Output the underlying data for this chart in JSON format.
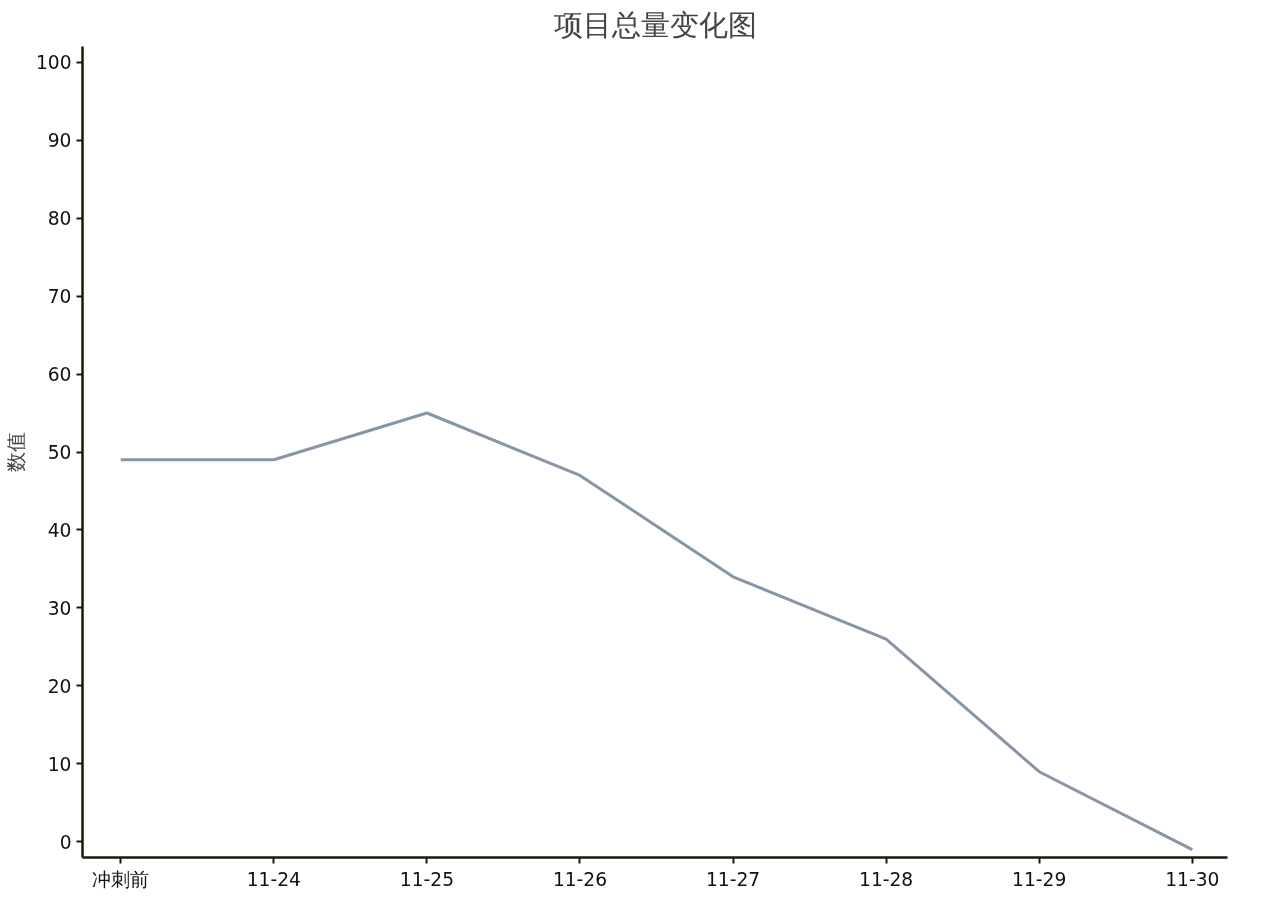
{
  "chart_data": {
    "type": "line",
    "title": "项目总量变化图",
    "ylabel": "数值",
    "categories": [
      "冲刺前",
      "11-24",
      "11-25",
      "11-26",
      "11-27",
      "11-28",
      "11-29",
      "11-30"
    ],
    "series": [
      {
        "color": "#8795a8",
        "values": [
          49,
          49,
          55,
          47,
          34,
          26,
          9,
          -1
        ]
      }
    ],
    "ylim": [
      -2,
      102
    ],
    "yticks": [
      0,
      10,
      20,
      30,
      40,
      50,
      60,
      70,
      80,
      90,
      100
    ],
    "grid": false,
    "marker": "none",
    "line_style": "solid"
  }
}
